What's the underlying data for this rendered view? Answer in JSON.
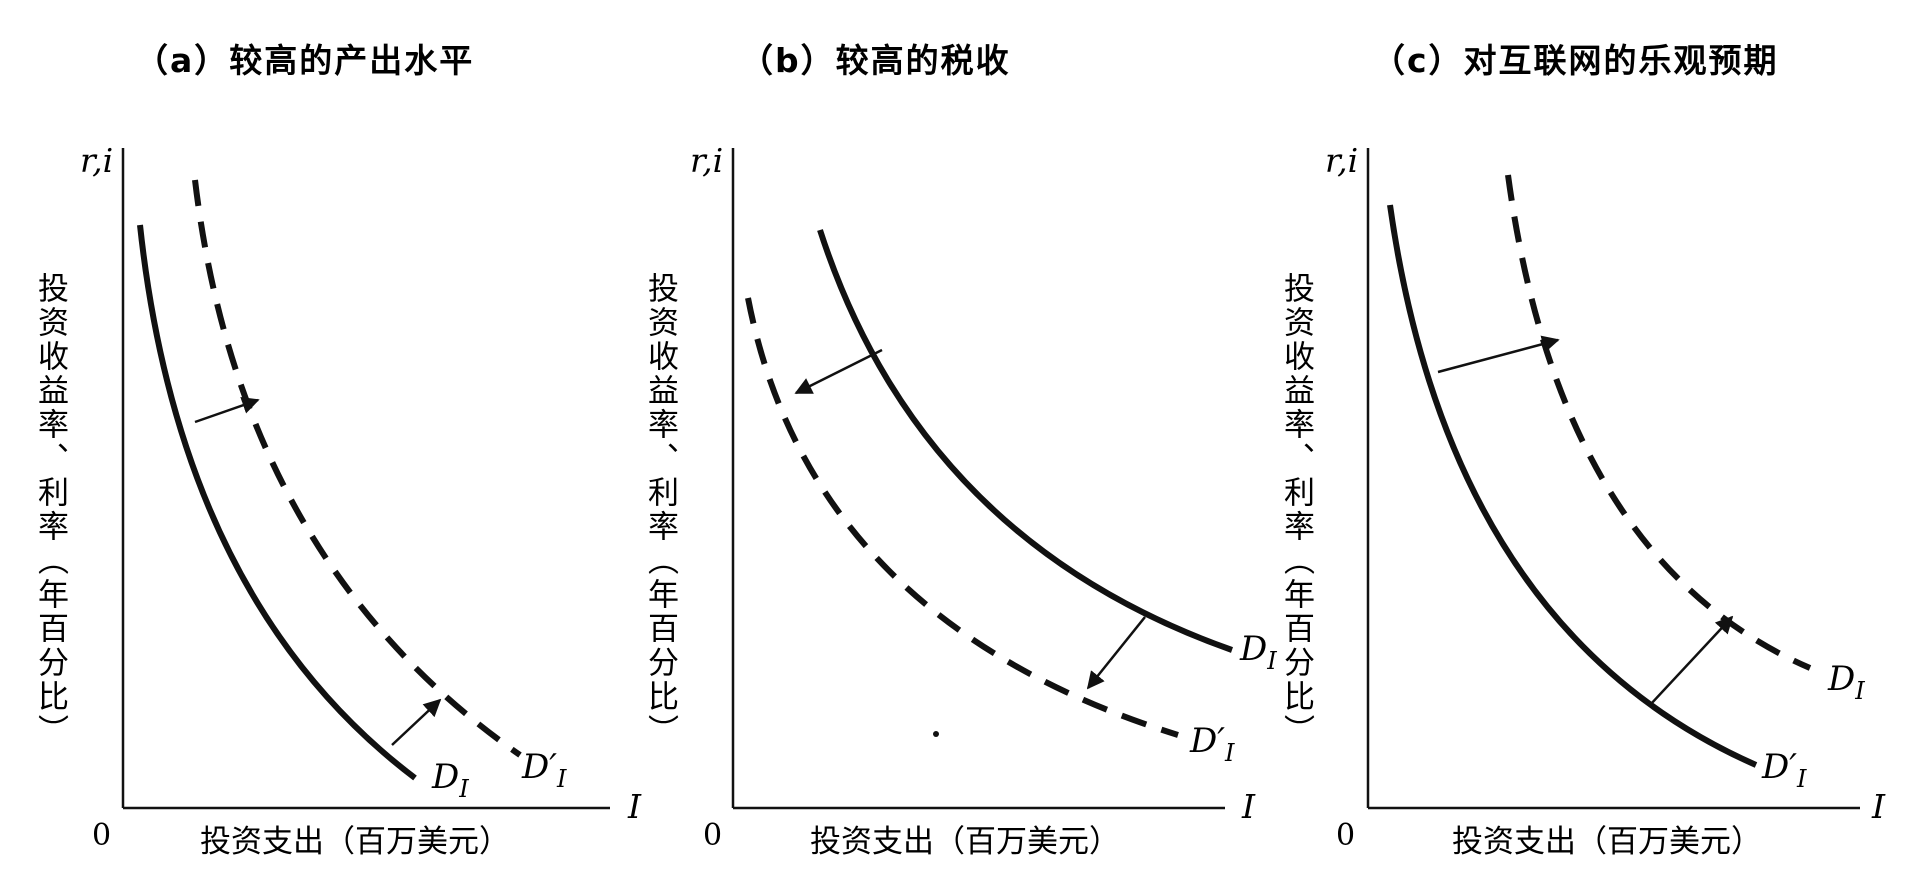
{
  "panels": [
    {
      "title": "（a）较高的产出水平",
      "y_axis_symbol": "r,i",
      "y_axis_label": "投资收益率、利率（年百分比）",
      "x_axis_symbol": "I",
      "x_axis_label": "投资支出（百万美元）",
      "origin_label": "0",
      "curves": [
        {
          "name": "D",
          "prime": "",
          "sub": "I",
          "style": "solid",
          "shift_dir": "right"
        },
        {
          "name": "D",
          "prime": "′",
          "sub": "I",
          "style": "dashed"
        }
      ]
    },
    {
      "title": "（b）较高的税收",
      "y_axis_symbol": "r,i",
      "y_axis_label": "投资收益率、利率（年百分比）",
      "x_axis_symbol": "I",
      "x_axis_label": "投资支出（百万美元）",
      "origin_label": "0",
      "curves": [
        {
          "name": "D",
          "prime": "",
          "sub": "I",
          "style": "solid",
          "shift_dir": "left"
        },
        {
          "name": "D",
          "prime": "′",
          "sub": "I",
          "style": "dashed"
        }
      ]
    },
    {
      "title": "（c）对互联网的乐观预期",
      "y_axis_symbol": "r,i",
      "y_axis_label": "投资收益率、利率（年百分比）",
      "x_axis_symbol": "I",
      "x_axis_label": "投资支出（百万美元）",
      "origin_label": "0",
      "curves": [
        {
          "name": "D",
          "prime": "′",
          "sub": "I",
          "style": "solid",
          "shift_dir": "right"
        },
        {
          "name": "D",
          "prime": "",
          "sub": "I",
          "style": "dashed"
        }
      ]
    }
  ]
}
